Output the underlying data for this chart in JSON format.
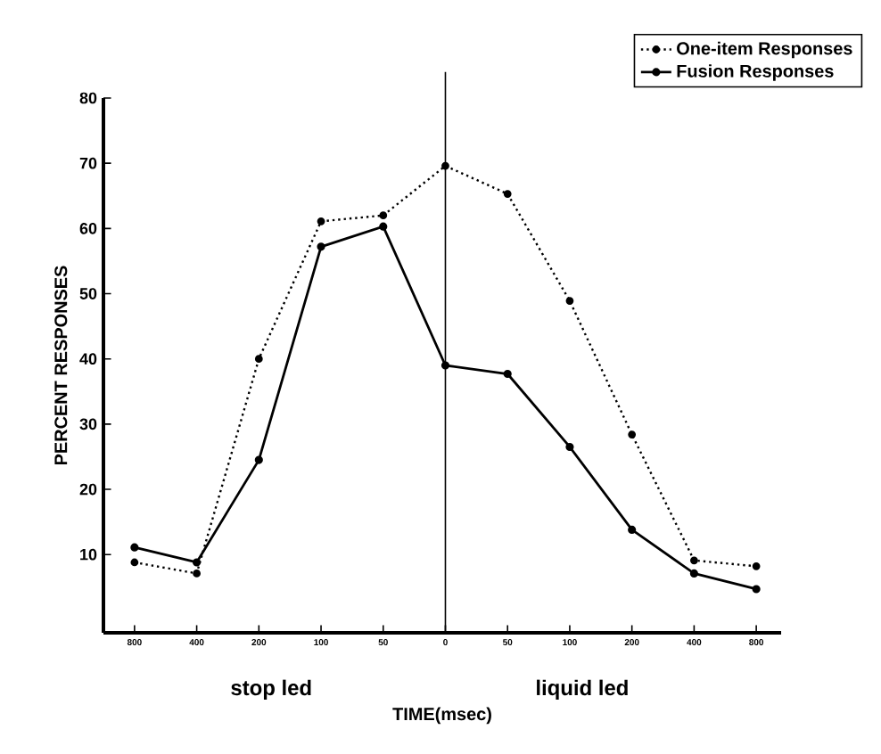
{
  "chart_data": {
    "type": "line",
    "xlabel": "TIME(msec)",
    "ylabel": "PERCENT RESPONSES",
    "categories": [
      "800",
      "400",
      "200",
      "100",
      "50",
      "0",
      "50",
      "100",
      "200",
      "400",
      "800"
    ],
    "series": [
      {
        "name": "One-item Responses",
        "color": "#000000",
        "line_style": "dotted",
        "values": [
          8.8,
          7.1,
          40,
          61.1,
          62,
          69.6,
          65.3,
          48.9,
          28.4,
          9.1,
          8.2
        ]
      },
      {
        "name": "Fusion Responses",
        "color": "#000000",
        "line_style": "solid",
        "values": [
          11.1,
          8.8,
          24.5,
          57.2,
          60.3,
          39,
          37.7,
          26.5,
          13.8,
          7.1,
          4.7
        ]
      }
    ],
    "ylim": [
      -2,
      80
    ],
    "yticks": [
      10,
      20,
      30,
      40,
      50,
      60,
      70,
      80
    ],
    "ref_lines": [
      {
        "axis": "x",
        "value": "0",
        "color": "#000000"
      }
    ],
    "annotations": [
      "stop led",
      "liquid led"
    ],
    "marker": "circle",
    "legend": "top right",
    "grid": false
  }
}
